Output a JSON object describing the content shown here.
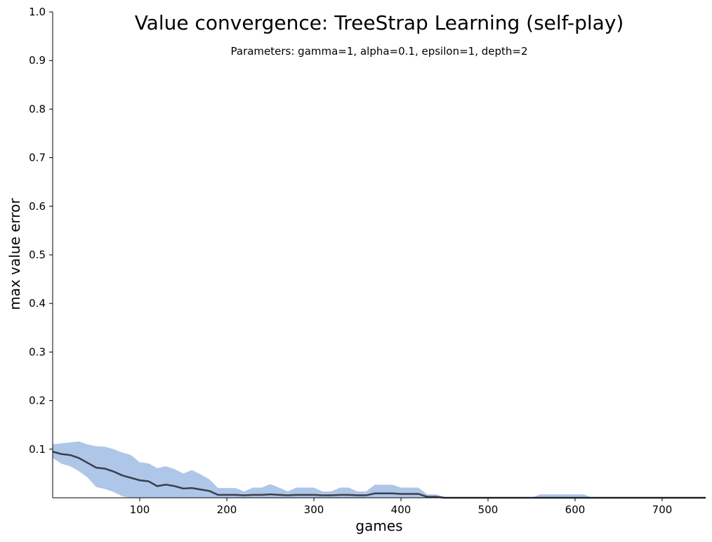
{
  "chart_data": {
    "type": "area",
    "title": "Value convergence: TreeStrap Learning (self-play)",
    "subtitle": "Parameters: gamma=1, alpha=0.1, epsilon=1, depth=2",
    "xlabel": "games",
    "ylabel": "max value error",
    "xlim": [
      0,
      750
    ],
    "ylim": [
      0,
      1.0
    ],
    "xticks": [
      "100",
      "200",
      "300",
      "400",
      "500",
      "600",
      "700"
    ],
    "xtick_values": [
      100,
      200,
      300,
      400,
      500,
      600,
      700
    ],
    "yticks": [
      "0.1",
      "0.2",
      "0.3",
      "0.4",
      "0.5",
      "0.6",
      "0.7",
      "0.8",
      "0.9",
      "1.0"
    ],
    "ytick_values": [
      0.1,
      0.2,
      0.3,
      0.4,
      0.5,
      0.6,
      0.7,
      0.8,
      0.9,
      1.0
    ],
    "grid": false,
    "colors": {
      "band": "#aec6e8",
      "line": "#3a3f4b"
    },
    "x": [
      0,
      10,
      20,
      30,
      40,
      50,
      60,
      70,
      80,
      90,
      100,
      110,
      120,
      130,
      140,
      150,
      160,
      170,
      180,
      190,
      200,
      210,
      220,
      230,
      240,
      250,
      260,
      270,
      280,
      290,
      300,
      310,
      320,
      330,
      340,
      350,
      360,
      370,
      380,
      390,
      400,
      410,
      420,
      430,
      440,
      450,
      460,
      470,
      480,
      490,
      500,
      510,
      520,
      530,
      540,
      550,
      560,
      570,
      580,
      590,
      600,
      610,
      620,
      630,
      640,
      650,
      660,
      670,
      680,
      690,
      700,
      710,
      720,
      730,
      740,
      750
    ],
    "series": [
      {
        "values": [
          0.095,
          0.09,
          0.088,
          0.082,
          0.072,
          0.062,
          0.06,
          0.054,
          0.046,
          0.041,
          0.036,
          0.034,
          0.024,
          0.027,
          0.024,
          0.019,
          0.02,
          0.017,
          0.014,
          0.006,
          0.006,
          0.006,
          0.005,
          0.006,
          0.006,
          0.007,
          0.006,
          0.005,
          0.006,
          0.006,
          0.006,
          0.005,
          0.005,
          0.006,
          0.006,
          0.005,
          0.005,
          0.009,
          0.009,
          0.009,
          0.008,
          0.008,
          0.008,
          0.002,
          0.002,
          0,
          0,
          0,
          0,
          0,
          0,
          0,
          0,
          0,
          0,
          0,
          0,
          0,
          0,
          0,
          0,
          0,
          0,
          0,
          0,
          0,
          0,
          0,
          0,
          0,
          0,
          0,
          0,
          0,
          0,
          0
        ],
        "upper": [
          0.11,
          0.112,
          0.114,
          0.116,
          0.11,
          0.106,
          0.105,
          0.1,
          0.093,
          0.088,
          0.073,
          0.071,
          0.061,
          0.065,
          0.059,
          0.05,
          0.057,
          0.048,
          0.038,
          0.02,
          0.02,
          0.02,
          0.013,
          0.021,
          0.021,
          0.028,
          0.021,
          0.013,
          0.021,
          0.021,
          0.021,
          0.013,
          0.013,
          0.021,
          0.021,
          0.013,
          0.013,
          0.027,
          0.027,
          0.027,
          0.021,
          0.021,
          0.021,
          0.007,
          0.007,
          0.002,
          0,
          0,
          0,
          0,
          0,
          0,
          0,
          0,
          0,
          0,
          0.007,
          0.007,
          0.007,
          0.007,
          0.007,
          0.007,
          0,
          0,
          0,
          0,
          0,
          0,
          0,
          0,
          0,
          0,
          0,
          0,
          0,
          0
        ],
        "lower": [
          0.082,
          0.07,
          0.065,
          0.055,
          0.042,
          0.022,
          0.018,
          0.012,
          0.003,
          0,
          0,
          0,
          0,
          0,
          0,
          0,
          0,
          0,
          0,
          0,
          0,
          0,
          0,
          0,
          0,
          0,
          0,
          0,
          0,
          0,
          0,
          0,
          0,
          0,
          0,
          0,
          0,
          0,
          0,
          0,
          0,
          0,
          0,
          0,
          0,
          0,
          0,
          0,
          0,
          0,
          0,
          0,
          0,
          0,
          0,
          0,
          0,
          0,
          0,
          0,
          0,
          0,
          0,
          0,
          0,
          0,
          0,
          0,
          0,
          0,
          0,
          0,
          0,
          0,
          0,
          0
        ]
      }
    ]
  }
}
